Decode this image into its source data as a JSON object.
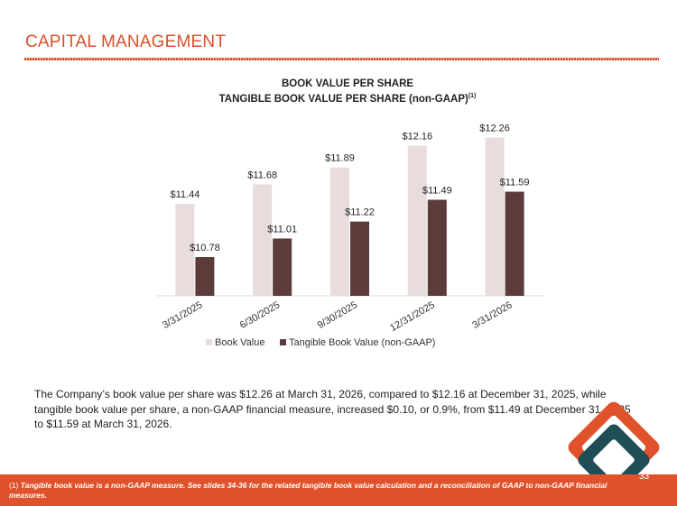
{
  "slide": {
    "title": "CAPITAL MANAGEMENT",
    "page_number": "33"
  },
  "chart_data": {
    "type": "bar",
    "title": "BOOK VALUE PER SHARE",
    "subtitle": "TANGIBLE BOOK VALUE PER SHARE (non-GAAP)",
    "subtitle_superscript": "(1)",
    "categories": [
      "3/31/2025",
      "6/30/2025",
      "9/30/2025",
      "12/31/2025",
      "3/31/2026"
    ],
    "series": [
      {
        "name": "Book Value",
        "values": [
          11.44,
          11.68,
          11.89,
          12.16,
          12.26
        ],
        "labels": [
          "$11.44",
          "$11.68",
          "$11.89",
          "$12.16",
          "$12.26"
        ],
        "color": "#e8dcdc"
      },
      {
        "name": "Tangible Book Value (non-GAAP)",
        "values": [
          10.78,
          11.01,
          11.22,
          11.49,
          11.59
        ],
        "labels": [
          "$10.78",
          "$11.01",
          "$11.22",
          "$11.49",
          "$11.59"
        ],
        "color": "#5c3b3b"
      }
    ],
    "ylim": [
      10.3,
      12.4
    ],
    "grid": false,
    "legend_position": "bottom"
  },
  "body": {
    "paragraph": "The Company’s book value per share was $12.26 at March 31, 2026, compared to $12.16 at December 31, 2025, while tangible book value per share, a non-GAAP financial measure, increased $0.10, or 0.9%, from $11.49 at December 31, 2025 to $11.59 at March 31, 2026."
  },
  "footer": {
    "marker": "(1)",
    "note": "Tangible book value is a non-GAAP measure.  See slides 34-36 for the related tangible book value calculation and a reconciliation of GAAP to non-GAAP financial measures."
  },
  "colors": {
    "accent": "#e0522c",
    "logo_orange": "#e0522c",
    "logo_teal": "#1f4e57"
  }
}
